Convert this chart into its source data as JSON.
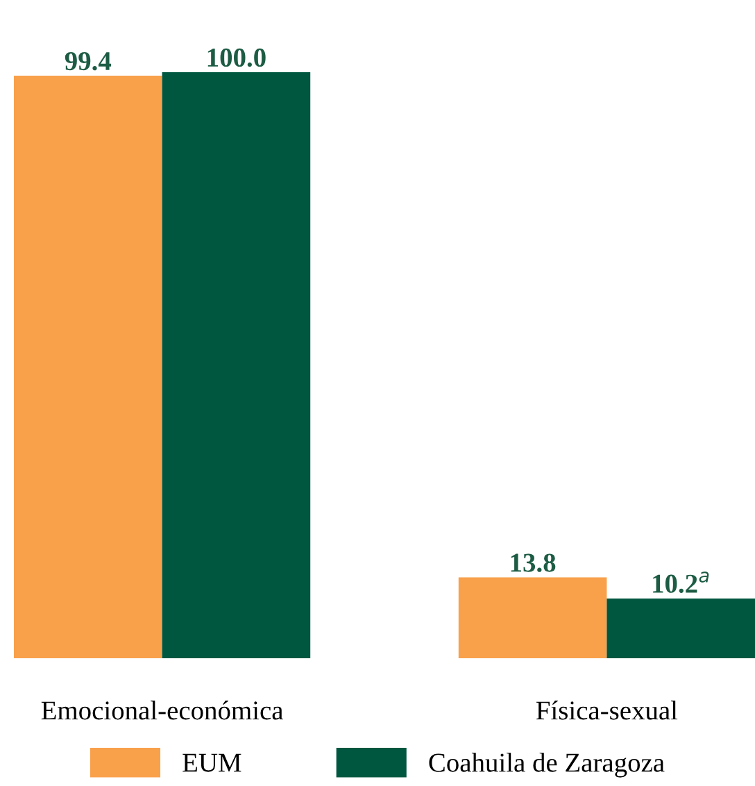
{
  "chart_data": {
    "type": "bar",
    "categories": [
      "Emocional-económica",
      "Física-sexual"
    ],
    "series": [
      {
        "name": "EUM",
        "color": "#f9a04b",
        "values": [
          99.4,
          13.8
        ],
        "value_labels": [
          "99.4",
          "13.8"
        ]
      },
      {
        "name": "Coahuila de Zaragoza",
        "color": "#00573f",
        "values": [
          100.0,
          10.2
        ],
        "value_labels": [
          "100.0",
          "10.2$^{a}$"
        ]
      }
    ],
    "ylim": [
      0,
      100
    ],
    "tick_labels": "x",
    "grid": false,
    "legend": "bottom"
  }
}
